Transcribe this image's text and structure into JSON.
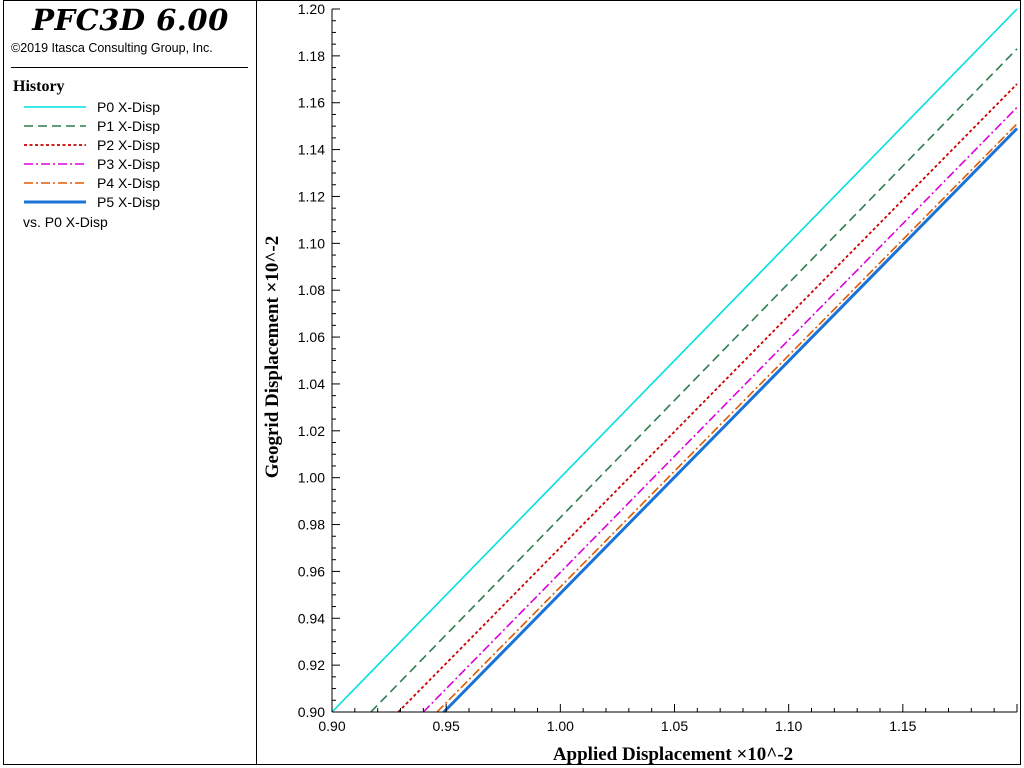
{
  "header": {
    "app_title": "PFC3D 6.00",
    "copyright": "©2019 Itasca Consulting Group, Inc."
  },
  "legend": {
    "heading": "History",
    "vs_label": "vs. P0 X-Disp"
  },
  "chart_data": {
    "type": "line",
    "xlabel": "Applied Displacement ×10^-2",
    "ylabel": "Geogrid Displacement ×10^-2",
    "xlim": [
      0.9,
      1.2
    ],
    "ylim": [
      0.9,
      1.2
    ],
    "x_ticks": [
      "0.90",
      "0.95",
      "1.00",
      "1.05",
      "1.10",
      "1.15"
    ],
    "y_ticks": [
      "0.90",
      "0.92",
      "0.94",
      "0.96",
      "0.98",
      "1.00",
      "1.02",
      "1.04",
      "1.06",
      "1.08",
      "1.10",
      "1.12",
      "1.14",
      "1.16",
      "1.18",
      "1.20"
    ],
    "grid": false,
    "legend_position": "left-panel",
    "series": [
      {
        "name": "P0 X-Disp",
        "color": "#00e0e0",
        "dash": "solid",
        "points": [
          [
            0.9,
            0.9
          ],
          [
            1.2,
            1.2
          ]
        ]
      },
      {
        "name": "P1 X-Disp",
        "color": "#2e7d4f",
        "dash": "dashed",
        "points": [
          [
            0.917,
            0.9
          ],
          [
            1.2,
            1.183
          ]
        ]
      },
      {
        "name": "P2 X-Disp",
        "color": "#cc0000",
        "dash": "dotted",
        "points": [
          [
            0.929,
            0.9
          ],
          [
            1.2,
            1.168
          ]
        ]
      },
      {
        "name": "P3 X-Disp",
        "color": "#dd00dd",
        "dash": "dash-dot",
        "points": [
          [
            0.94,
            0.9
          ],
          [
            1.2,
            1.158
          ]
        ]
      },
      {
        "name": "P4 X-Disp",
        "color": "#e05a00",
        "dash": "dash-dot",
        "points": [
          [
            0.946,
            0.9
          ],
          [
            1.2,
            1.151
          ]
        ]
      },
      {
        "name": "P5 X-Disp",
        "color": "#1a73d9",
        "dash": "solid-thick",
        "points": [
          [
            0.949,
            0.9
          ],
          [
            1.2,
            1.149
          ]
        ]
      }
    ]
  }
}
